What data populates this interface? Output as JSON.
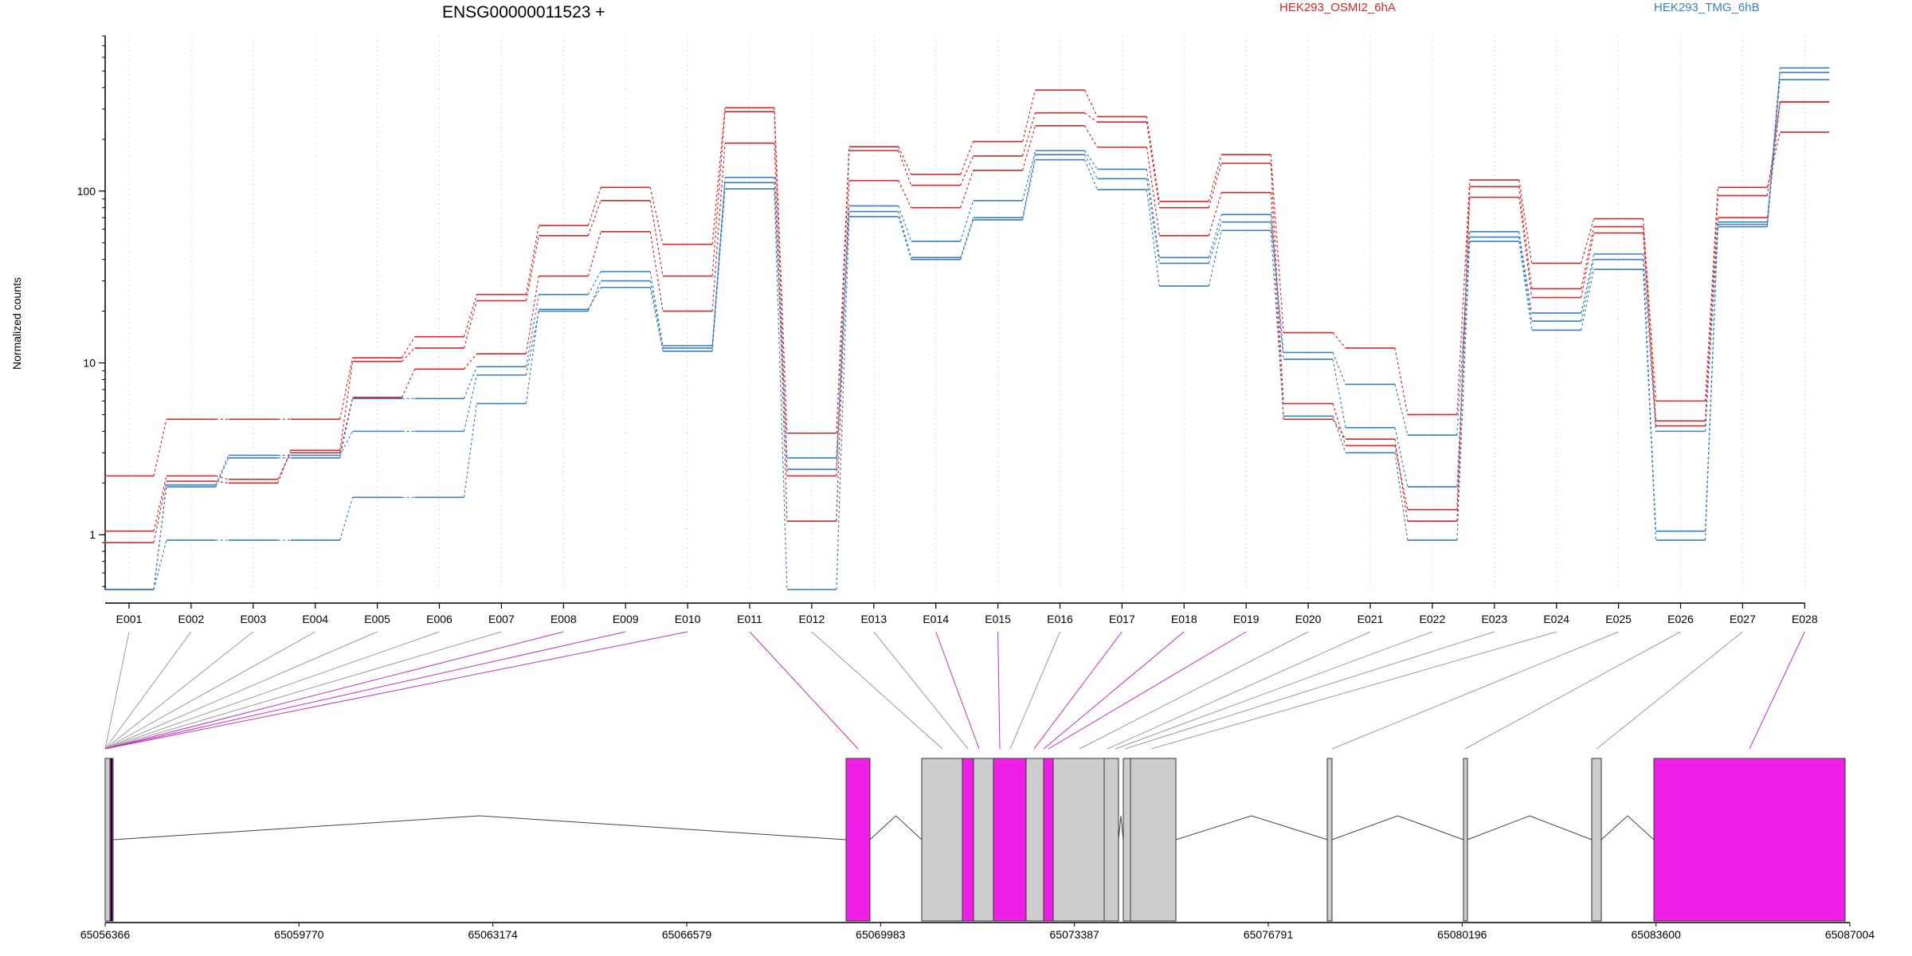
{
  "chart_data": {
    "type": "line",
    "title": "ENSG00000011523 +",
    "ylabel": "Normalized counts",
    "yscale": "log",
    "ylim": [
      0.48,
      800
    ],
    "yticks": [
      1,
      10,
      100
    ],
    "yticklabels": [
      "1",
      "10",
      "100"
    ],
    "grid": "vertical dotted",
    "legend": [
      {
        "name": "HEK293_OSMI2_6hA",
        "color": "#d62728"
      },
      {
        "name": "HEK293_TMG_6hB",
        "color": "#3a7fbf"
      }
    ],
    "categories": [
      "E001",
      "E002",
      "E003",
      "E004",
      "E005",
      "E006",
      "E007",
      "E008",
      "E009",
      "E010",
      "E011",
      "E012",
      "E013",
      "E014",
      "E015",
      "E016",
      "E017",
      "E018",
      "E019",
      "E020",
      "E021",
      "E022",
      "E023",
      "E024",
      "E025",
      "E026",
      "E027",
      "E028"
    ],
    "series": [
      {
        "group": "HEK293_OSMI2_6hA",
        "color": "#d62728",
        "values": [
          1.05,
          2.2,
          2.1,
          3.0,
          6.3,
          9.2,
          11.3,
          32.0,
          58.0,
          20.0,
          190,
          1.2,
          115,
          80,
          132,
          240,
          180,
          55,
          98,
          4.7,
          3.6,
          1.2,
          92,
          24,
          57,
          4.3,
          70,
          330
        ]
      },
      {
        "group": "HEK293_OSMI2_6hA",
        "color": "#d62728",
        "values": [
          0.9,
          2.05,
          2.0,
          3.1,
          10.2,
          12.2,
          23.0,
          55.0,
          88.0,
          32.0,
          290,
          2.2,
          172,
          108,
          160,
          285,
          252,
          80,
          145,
          5.8,
          3.3,
          1.4,
          106,
          27,
          62,
          4.6,
          94,
          330
        ]
      },
      {
        "group": "HEK293_OSMI2_6hA",
        "color": "#d62728",
        "values": [
          2.2,
          4.7,
          4.7,
          4.7,
          10.7,
          14.2,
          25.0,
          63.0,
          105.0,
          49.0,
          305,
          3.9,
          181,
          125,
          194,
          387,
          271,
          87,
          163,
          15.0,
          12.2,
          5.0,
          116,
          38,
          69,
          6.0,
          105,
          220
        ]
      },
      {
        "group": "HEK293_TMG_6hB",
        "color": "#3a7fbf",
        "values": [
          0.48,
          0.93,
          0.93,
          0.93,
          1.65,
          1.65,
          5.8,
          20.5,
          27.5,
          11.7,
          103,
          0.48,
          71,
          40,
          68,
          152,
          102,
          28,
          59,
          4.9,
          3.0,
          0.93,
          51,
          15.5,
          35,
          0.93,
          62,
          445
        ]
      },
      {
        "group": "HEK293_TMG_6hB",
        "color": "#3a7fbf",
        "values": [
          0.48,
          1.95,
          2.9,
          2.9,
          4.0,
          4.0,
          8.5,
          20.0,
          30.0,
          12.2,
          112,
          2.4,
          76,
          41,
          70,
          163,
          118,
          38,
          66,
          10.5,
          4.2,
          1.9,
          54,
          17.5,
          40,
          1.05,
          64,
          490
        ]
      },
      {
        "group": "HEK293_TMG_6hB",
        "color": "#3a7fbf",
        "values": [
          0.48,
          1.9,
          2.8,
          2.8,
          6.2,
          6.2,
          9.5,
          25.0,
          34.0,
          12.6,
          120,
          2.8,
          82,
          51,
          88,
          172,
          134,
          41,
          73,
          11.5,
          7.5,
          3.8,
          58,
          19.5,
          43,
          4.0,
          66,
          520
        ]
      }
    ],
    "gene_model": {
      "coord_ticks": [
        "65056366",
        "65059770",
        "65063174",
        "65066579",
        "65069983",
        "65073387",
        "65076791",
        "65080196",
        "65083600",
        "65087004"
      ],
      "highlight_color": "#f01fe6",
      "plain_color": "#cccccc"
    }
  }
}
